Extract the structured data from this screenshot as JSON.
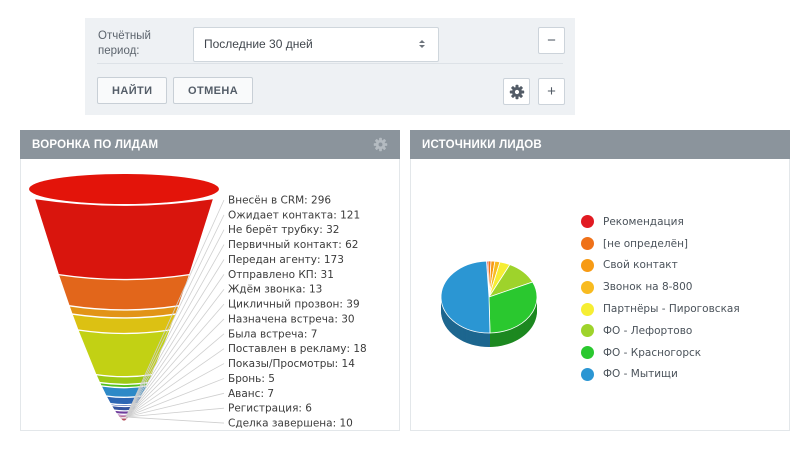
{
  "filter": {
    "period_label": "Отчётный период:",
    "period_value": "Последние 30 дней",
    "find_button": "НАЙТИ",
    "cancel_button": "ОТМЕНА",
    "collapse_glyph": "−",
    "add_glyph": "+"
  },
  "widgets": {
    "funnel": {
      "title": "ВОРОНКА ПО ЛИДАМ"
    },
    "sources": {
      "title": "ИСТОЧНИКИ ЛИДОВ"
    }
  },
  "chart_data": [
    {
      "type": "funnel",
      "title": "ВОРОНКА ПО ЛИДАМ",
      "label_format": "{label}: {value}",
      "stages": [
        {
          "label": "Внесён в CRM",
          "value": 296,
          "color": "#d9150d"
        },
        {
          "label": "Ожидает контакта",
          "value": 121,
          "color": "#e2661b"
        },
        {
          "label": "Не берёт трубку",
          "value": 32,
          "color": "#e29417"
        },
        {
          "label": "Первичный контакт",
          "value": 62,
          "color": "#dcc113"
        },
        {
          "label": "Передан агенту",
          "value": 173,
          "color": "#c2d114"
        },
        {
          "label": "Отправлено КП",
          "value": 31,
          "color": "#9cc915"
        },
        {
          "label": "Ждём звонка",
          "value": 13,
          "color": "#54c01c"
        },
        {
          "label": "Цикличный прозвон",
          "value": 39,
          "color": "#2d89c7"
        },
        {
          "label": "Назначена встреча",
          "value": 30,
          "color": "#2d66b3"
        },
        {
          "label": "Была встреча",
          "value": 7,
          "color": "#2b4da5"
        },
        {
          "label": "Поставлен в рекламу",
          "value": 18,
          "color": "#35539e"
        },
        {
          "label": "Показы/Просмотры",
          "value": 14,
          "color": "#6f3d9c"
        },
        {
          "label": "Бронь",
          "value": 5,
          "color": "#8e2d92"
        },
        {
          "label": "Аванс",
          "value": 7,
          "color": "#8f215f"
        },
        {
          "label": "Регистрация",
          "value": 6,
          "color": "#8f1b40"
        },
        {
          "label": "Сделка завершена",
          "value": 10,
          "color": "#9c1425"
        }
      ]
    },
    {
      "type": "pie",
      "title": "ИСТОЧНИКИ ЛИДОВ",
      "effect": "3d",
      "legend_position": "right",
      "slices": [
        {
          "label": "Рекомендация",
          "percent": 0.5,
          "color": "#e11a22"
        },
        {
          "label": "[не определён]",
          "percent": 1.0,
          "color": "#ef7119"
        },
        {
          "label": "Свой контакт",
          "percent": 1.3,
          "color": "#f79b15"
        },
        {
          "label": "Звонок на 8-800",
          "percent": 1.7,
          "color": "#f8bb20"
        },
        {
          "label": "Партнёры - Пироговская",
          "percent": 3.5,
          "color": "#f6ee33"
        },
        {
          "label": "ФО - Лефортово",
          "percent": 11,
          "color": "#9ed32b"
        },
        {
          "label": "ФО - Красногорск",
          "percent": 31.5,
          "color": "#2ac82f"
        },
        {
          "label": "ФО - Мытищи",
          "percent": 49.5,
          "color": "#2b96d3"
        }
      ]
    }
  ]
}
